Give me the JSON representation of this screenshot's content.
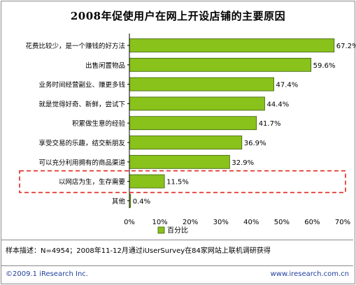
{
  "title": "2008年促使用户在网上开设店铺的主要原因",
  "chart_data": {
    "type": "bar",
    "orientation": "horizontal",
    "categories": [
      "花费比较少，是一个赚钱的好方法",
      "出售闲置物品",
      "业务时间经营副业、赚更多钱",
      "就是觉得好奇、新鲜，尝试下",
      "积累做生意的经验",
      "享受交易的乐趣，结交新朋友",
      "可以充分利用拥有的商品渠道",
      "以网店为生，生存需要",
      "其他"
    ],
    "values": [
      67.2,
      59.6,
      47.4,
      44.4,
      41.7,
      36.9,
      32.9,
      11.5,
      0.4
    ],
    "value_labels": [
      "67.2%",
      "59.6%",
      "47.4%",
      "44.4%",
      "41.7%",
      "36.9%",
      "32.9%",
      "11.5%",
      "0.4%"
    ],
    "x_ticks": [
      "0%",
      "10%",
      "20%",
      "30%",
      "40%",
      "50%",
      "60%",
      "70%"
    ],
    "xlim": [
      0,
      70
    ],
    "legend": "百分比",
    "legend_position": "bottom",
    "bar_color": "#88c21b",
    "highlight_color": "#e2231a",
    "highlighted_category": "以网店为生，生存需要"
  },
  "footer": {
    "sample": "样本描述：N=4954；2008年11-12月通过iUserSurvey在84家网站上联机调研获得",
    "copyright": "©2009.1 iResearch Inc.",
    "site": "www.iresearch.com.cn"
  }
}
